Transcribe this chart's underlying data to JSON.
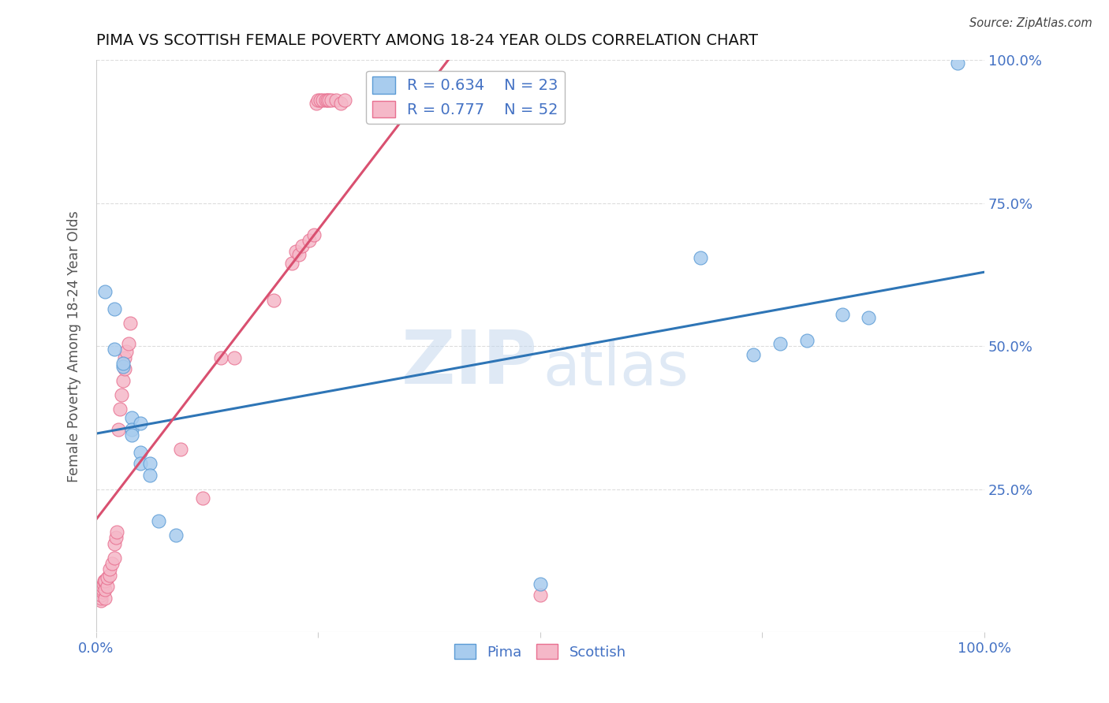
{
  "title": "PIMA VS SCOTTISH FEMALE POVERTY AMONG 18-24 YEAR OLDS CORRELATION CHART",
  "source": "Source: ZipAtlas.com",
  "ylabel": "Female Poverty Among 18-24 Year Olds",
  "xlim": [
    0.0,
    1.0
  ],
  "ylim": [
    0.0,
    1.0
  ],
  "watermark_zip": "ZIP",
  "watermark_atlas": "atlas",
  "pima_color": "#A8CCEE",
  "scottish_color": "#F5B8C8",
  "pima_edge_color": "#5B9BD5",
  "scottish_edge_color": "#E87090",
  "pima_line_color": "#2E75B6",
  "scottish_line_color": "#D95070",
  "pima_R": 0.634,
  "pima_N": 23,
  "scottish_R": 0.777,
  "scottish_N": 52,
  "pima_points": [
    [
      0.01,
      0.595
    ],
    [
      0.02,
      0.565
    ],
    [
      0.02,
      0.495
    ],
    [
      0.03,
      0.465
    ],
    [
      0.03,
      0.47
    ],
    [
      0.04,
      0.375
    ],
    [
      0.04,
      0.355
    ],
    [
      0.04,
      0.345
    ],
    [
      0.05,
      0.315
    ],
    [
      0.05,
      0.295
    ],
    [
      0.05,
      0.365
    ],
    [
      0.06,
      0.295
    ],
    [
      0.06,
      0.275
    ],
    [
      0.07,
      0.195
    ],
    [
      0.09,
      0.17
    ],
    [
      0.5,
      0.085
    ],
    [
      0.68,
      0.655
    ],
    [
      0.74,
      0.485
    ],
    [
      0.77,
      0.505
    ],
    [
      0.8,
      0.51
    ],
    [
      0.84,
      0.555
    ],
    [
      0.87,
      0.55
    ],
    [
      0.97,
      0.995
    ]
  ],
  "scottish_points": [
    [
      0.005,
      0.055
    ],
    [
      0.005,
      0.06
    ],
    [
      0.005,
      0.065
    ],
    [
      0.007,
      0.07
    ],
    [
      0.007,
      0.075
    ],
    [
      0.007,
      0.08
    ],
    [
      0.008,
      0.085
    ],
    [
      0.009,
      0.09
    ],
    [
      0.01,
      0.06
    ],
    [
      0.01,
      0.075
    ],
    [
      0.01,
      0.09
    ],
    [
      0.012,
      0.08
    ],
    [
      0.012,
      0.095
    ],
    [
      0.015,
      0.1
    ],
    [
      0.015,
      0.11
    ],
    [
      0.018,
      0.12
    ],
    [
      0.02,
      0.13
    ],
    [
      0.02,
      0.155
    ],
    [
      0.022,
      0.165
    ],
    [
      0.023,
      0.175
    ],
    [
      0.025,
      0.355
    ],
    [
      0.027,
      0.39
    ],
    [
      0.028,
      0.415
    ],
    [
      0.03,
      0.44
    ],
    [
      0.032,
      0.46
    ],
    [
      0.032,
      0.48
    ],
    [
      0.034,
      0.49
    ],
    [
      0.036,
      0.505
    ],
    [
      0.038,
      0.54
    ],
    [
      0.095,
      0.32
    ],
    [
      0.12,
      0.235
    ],
    [
      0.14,
      0.48
    ],
    [
      0.155,
      0.48
    ],
    [
      0.2,
      0.58
    ],
    [
      0.22,
      0.645
    ],
    [
      0.225,
      0.665
    ],
    [
      0.228,
      0.66
    ],
    [
      0.232,
      0.675
    ],
    [
      0.24,
      0.685
    ],
    [
      0.245,
      0.695
    ],
    [
      0.248,
      0.925
    ],
    [
      0.25,
      0.93
    ],
    [
      0.252,
      0.93
    ],
    [
      0.255,
      0.93
    ],
    [
      0.258,
      0.93
    ],
    [
      0.26,
      0.93
    ],
    [
      0.262,
      0.93
    ],
    [
      0.265,
      0.93
    ],
    [
      0.27,
      0.93
    ],
    [
      0.275,
      0.925
    ],
    [
      0.28,
      0.93
    ],
    [
      0.5,
      0.065
    ]
  ],
  "background_color": "#FFFFFF",
  "grid_color": "#DDDDDD",
  "axis_color": "#CCCCCC",
  "tick_color": "#4472C4",
  "label_color": "#555555"
}
